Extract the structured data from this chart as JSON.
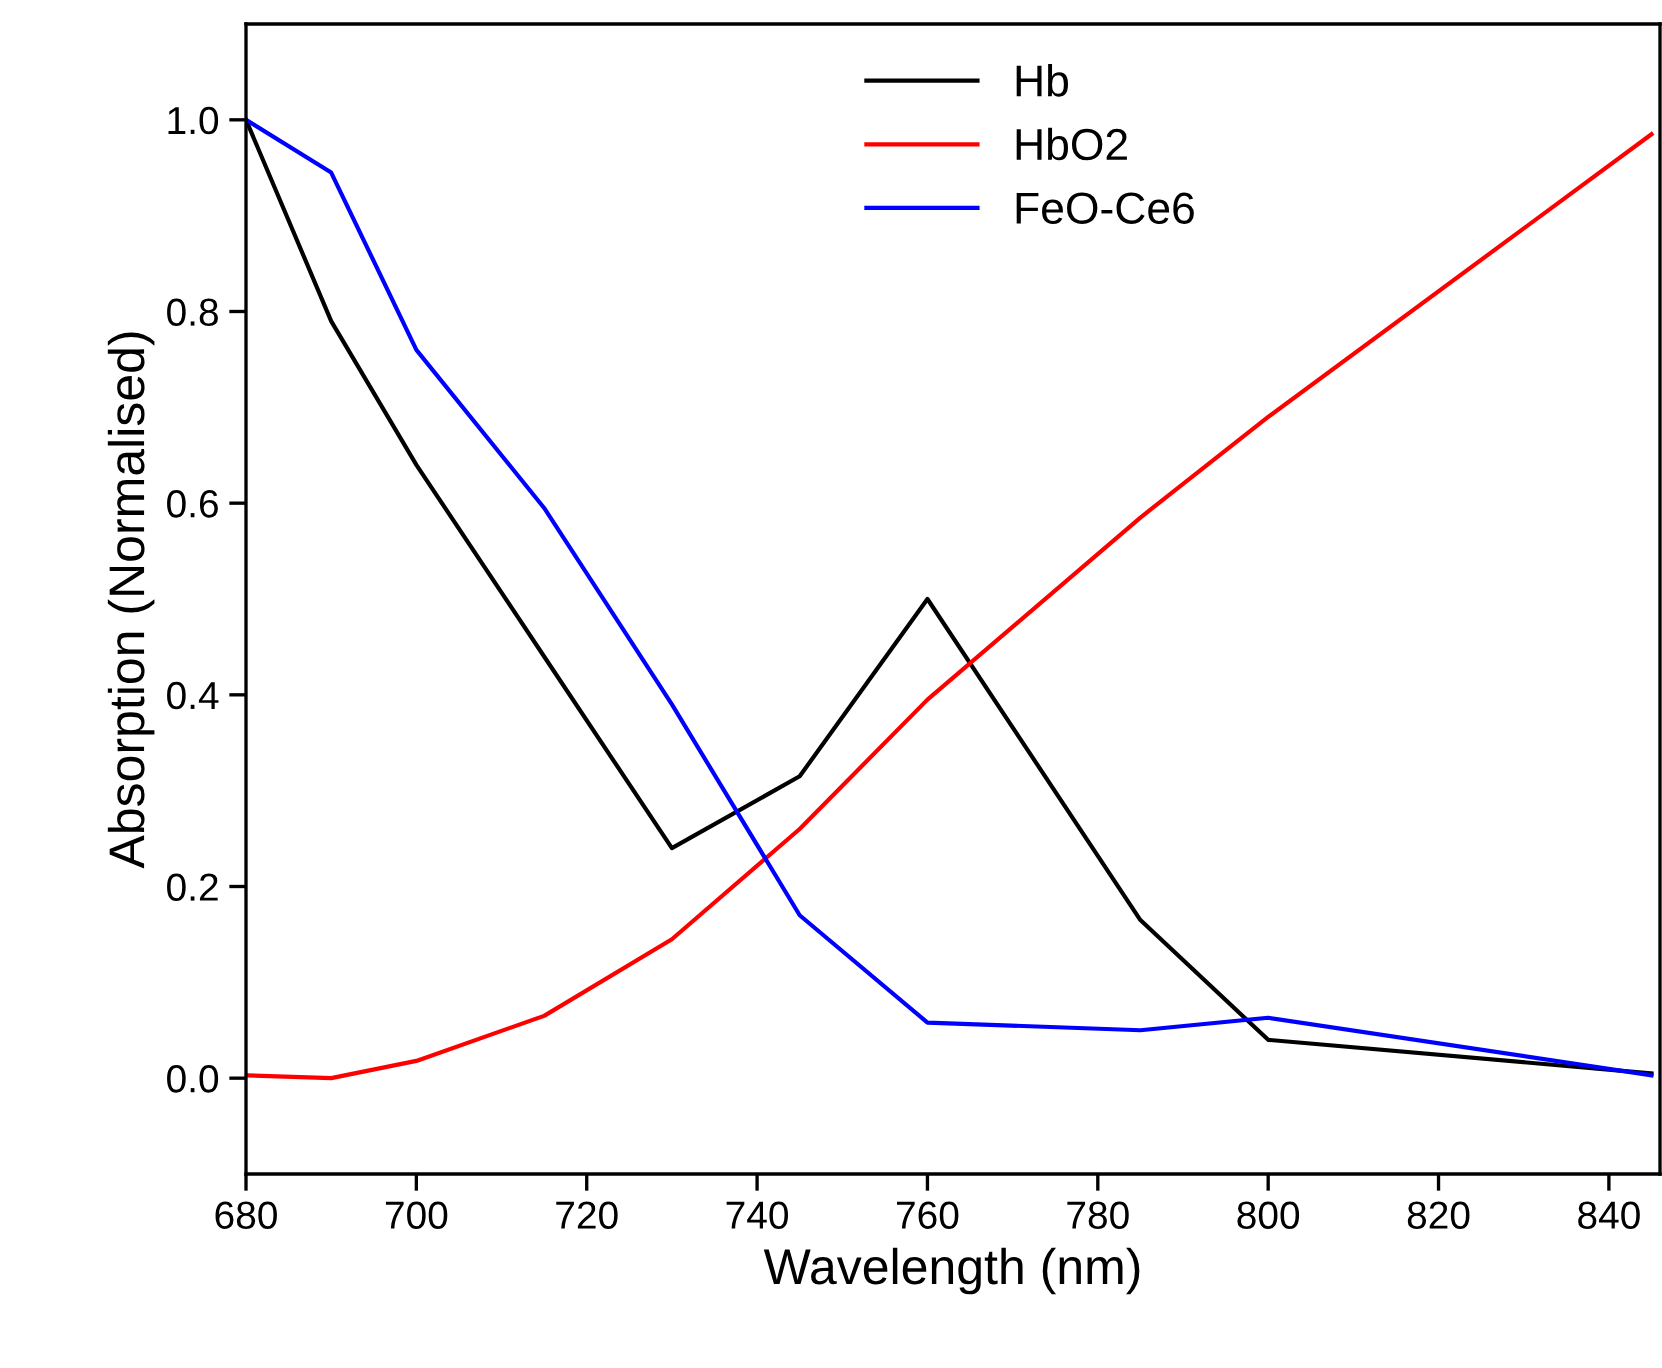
{
  "chart_data": {
    "type": "line",
    "xlabel": "Wavelength (nm)",
    "ylabel": "Absorption (Normalised)",
    "x": [
      680,
      690,
      700,
      715,
      730,
      745,
      760,
      785,
      800,
      845
    ],
    "series": [
      {
        "name": "Hb",
        "color": "#000000",
        "values": [
          1.0,
          0.79,
          0.64,
          0.44,
          0.24,
          0.315,
          0.5,
          0.165,
          0.04,
          0.005
        ]
      },
      {
        "name": "HbO2",
        "color": "#ff0000",
        "values": [
          0.003,
          0.0,
          0.018,
          0.065,
          0.145,
          0.26,
          0.395,
          0.585,
          0.69,
          0.985
        ]
      },
      {
        "name": "FeO-Ce6",
        "color": "#0000ff",
        "values": [
          1.0,
          0.945,
          0.76,
          0.595,
          0.39,
          0.17,
          0.058,
          0.05,
          0.063,
          0.003
        ]
      }
    ],
    "xlim": [
      680,
      846
    ],
    "xticks": [
      680,
      700,
      720,
      740,
      760,
      780,
      800,
      820,
      840
    ],
    "ylim": [
      -0.1,
      1.1
    ],
    "yticks": [
      {
        "value": 0,
        "label": "0.0"
      },
      {
        "value": 0.2,
        "label": "0.2"
      },
      {
        "value": 0.4,
        "label": "0.4"
      },
      {
        "value": 0.6,
        "label": "0.6"
      },
      {
        "value": 0.8,
        "label": "0.8"
      },
      {
        "value": 1.0,
        "label": "1.0"
      }
    ],
    "legend": "top right",
    "grid": false,
    "marker": "none",
    "line_style": "solid"
  }
}
